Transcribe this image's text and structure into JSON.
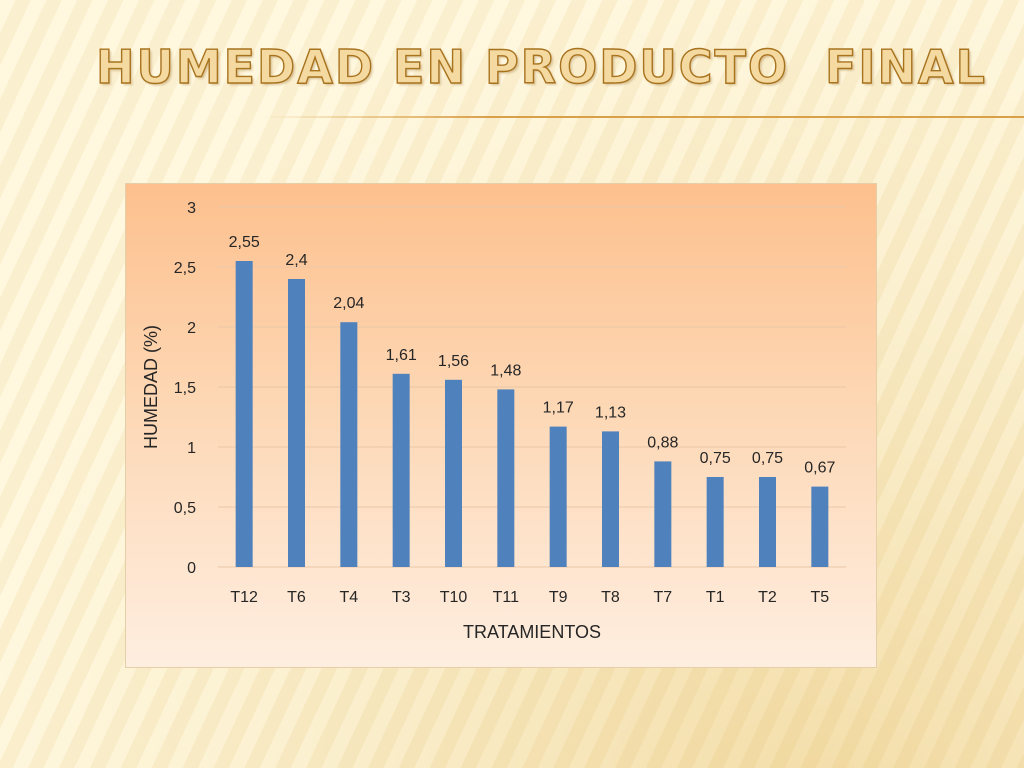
{
  "slide": {
    "title": "HUMEDAD EN PRODUCTO  FINAL"
  },
  "colors": {
    "bar": "#4f81bd",
    "grid": "#e9c7a7",
    "text": "#262626"
  },
  "chart_data": {
    "type": "bar",
    "categories": [
      "T12",
      "T6",
      "T4",
      "T3",
      "T10",
      "T11",
      "T9",
      "T8",
      "T7",
      "T1",
      "T2",
      "T5"
    ],
    "values": [
      2.55,
      2.4,
      2.04,
      1.61,
      1.56,
      1.48,
      1.17,
      1.13,
      0.88,
      0.75,
      0.75,
      0.67
    ],
    "data_labels": [
      "2,55",
      "2,4",
      "2,04",
      "1,61",
      "1,56",
      "1,48",
      "1,17",
      "1,13",
      "0,88",
      "0,75",
      "0,75",
      "0,67"
    ],
    "title": "",
    "xlabel": "TRATAMIENTOS",
    "ylabel": "HUMEDAD (%)",
    "ylim": [
      0,
      3
    ],
    "yticks": [
      0,
      0.5,
      1,
      1.5,
      2,
      2.5,
      3
    ],
    "ytick_labels": [
      "0",
      "0,5",
      "1",
      "1,5",
      "2",
      "2,5",
      "3"
    ],
    "grid": true,
    "legend": "none"
  }
}
